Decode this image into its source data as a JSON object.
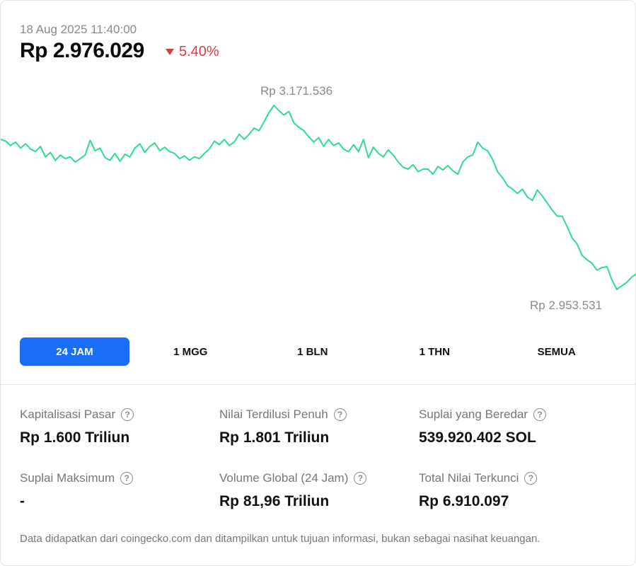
{
  "header": {
    "timestamp": "18 Aug 2025 11:40:00",
    "price": "Rp 2.976.029",
    "change": "5.40%",
    "change_direction": "down",
    "down_color": "#e0383e"
  },
  "chart_data": {
    "type": "line",
    "series_color": "#2fdc8f",
    "high_label": "Rp 3.171.536",
    "low_label": "Rp 2.953.531",
    "ylim": [
      2953531,
      3171536
    ],
    "values": [
      3.128,
      3.126,
      3.121,
      3.125,
      3.118,
      3.123,
      3.117,
      3.114,
      3.12,
      3.108,
      3.113,
      3.104,
      3.11,
      3.106,
      3.108,
      3.102,
      3.106,
      3.11,
      3.127,
      3.115,
      3.118,
      3.107,
      3.104,
      3.112,
      3.103,
      3.111,
      3.108,
      3.118,
      3.123,
      3.113,
      3.12,
      3.124,
      3.115,
      3.119,
      3.114,
      3.112,
      3.106,
      3.109,
      3.104,
      3.108,
      3.106,
      3.112,
      3.117,
      3.126,
      3.122,
      3.128,
      3.121,
      3.125,
      3.134,
      3.128,
      3.134,
      3.141,
      3.138,
      3.148,
      3.159,
      3.167,
      3.161,
      3.156,
      3.16,
      3.147,
      3.142,
      3.138,
      3.131,
      3.125,
      3.13,
      3.12,
      3.128,
      3.121,
      3.124,
      3.117,
      3.114,
      3.122,
      3.114,
      3.128,
      3.107,
      3.119,
      3.112,
      3.108,
      3.116,
      3.11,
      3.102,
      3.096,
      3.094,
      3.099,
      3.091,
      3.094,
      3.094,
      3.088,
      3.097,
      3.093,
      3.098,
      3.092,
      3.088,
      3.102,
      3.108,
      3.11,
      3.125,
      3.118,
      3.115,
      3.105,
      3.091,
      3.084,
      3.075,
      3.071,
      3.066,
      3.071,
      3.062,
      3.058,
      3.07,
      3.063,
      3.055,
      3.047,
      3.04,
      3.04,
      3.028,
      3.015,
      3.008,
      2.995,
      2.99,
      2.986,
      2.978,
      2.981,
      2.982,
      2.967,
      2.956,
      2.96,
      2.964,
      2.97,
      2.974
    ]
  },
  "tabs": [
    {
      "label": "24 JAM",
      "active": true
    },
    {
      "label": "1 MGG",
      "active": false
    },
    {
      "label": "1 BLN",
      "active": false
    },
    {
      "label": "1 THN",
      "active": false
    },
    {
      "label": "SEMUA",
      "active": false
    }
  ],
  "stats": [
    {
      "label": "Kapitalisasi Pasar",
      "value": "Rp 1.600 Triliun"
    },
    {
      "label": "Nilai Terdilusi Penuh",
      "value": "Rp 1.801 Triliun"
    },
    {
      "label": "Suplai yang Beredar",
      "value": "539.920.402 SOL"
    },
    {
      "label": "Suplai Maksimum",
      "value": "-"
    },
    {
      "label": "Volume Global (24 Jam)",
      "value": "Rp 81,96 Triliun"
    },
    {
      "label": "Total Nilai Terkunci",
      "value": "Rp 6.910.097"
    }
  ],
  "help_glyph": "?",
  "accent_color": "#1a6ef5",
  "footnote": "Data didapatkan dari coingecko.com dan ditampilkan untuk tujuan informasi, bukan sebagai nasihat keuangan."
}
